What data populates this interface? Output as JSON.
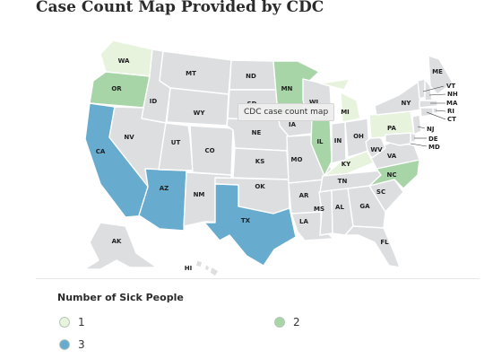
{
  "title": "Case Count Map Provided by CDC",
  "tooltip": "CDC case count map",
  "legend": {
    "title": "Number of Sick People",
    "items": [
      {
        "label": "1",
        "color": "#e8f3de"
      },
      {
        "label": "2",
        "color": "#a8d5a8"
      },
      {
        "label": "3",
        "color": "#67abcf"
      }
    ]
  },
  "colors": {
    "none": "#dcdee0",
    "one": "#e8f3de",
    "two": "#a8d5a8",
    "three": "#67abcf"
  },
  "states": [
    {
      "abbr": "WA",
      "value": 1
    },
    {
      "abbr": "OR",
      "value": 2
    },
    {
      "abbr": "CA",
      "value": 3
    },
    {
      "abbr": "ID",
      "value": 0
    },
    {
      "abbr": "NV",
      "value": 0
    },
    {
      "abbr": "AZ",
      "value": 3
    },
    {
      "abbr": "UT",
      "value": 0
    },
    {
      "abbr": "MT",
      "value": 0
    },
    {
      "abbr": "WY",
      "value": 0
    },
    {
      "abbr": "CO",
      "value": 0
    },
    {
      "abbr": "NM",
      "value": 0
    },
    {
      "abbr": "ND",
      "value": 0
    },
    {
      "abbr": "SD",
      "value": 0
    },
    {
      "abbr": "NE",
      "value": 0
    },
    {
      "abbr": "KS",
      "value": 0
    },
    {
      "abbr": "OK",
      "value": 0
    },
    {
      "abbr": "TX",
      "value": 3
    },
    {
      "abbr": "MN",
      "value": 2
    },
    {
      "abbr": "IA",
      "value": 0
    },
    {
      "abbr": "MO",
      "value": 0
    },
    {
      "abbr": "AR",
      "value": 0
    },
    {
      "abbr": "LA",
      "value": 0
    },
    {
      "abbr": "WI",
      "value": 0
    },
    {
      "abbr": "IL",
      "value": 2
    },
    {
      "abbr": "MI",
      "value": 1
    },
    {
      "abbr": "IN",
      "value": 0
    },
    {
      "abbr": "OH",
      "value": 0
    },
    {
      "abbr": "KY",
      "value": 1
    },
    {
      "abbr": "TN",
      "value": 0
    },
    {
      "abbr": "MS",
      "value": 0
    },
    {
      "abbr": "AL",
      "value": 0
    },
    {
      "abbr": "GA",
      "value": 0
    },
    {
      "abbr": "FL",
      "value": 0
    },
    {
      "abbr": "SC",
      "value": 0
    },
    {
      "abbr": "NC",
      "value": 2
    },
    {
      "abbr": "VA",
      "value": 0
    },
    {
      "abbr": "WV",
      "value": 0
    },
    {
      "abbr": "PA",
      "value": 1
    },
    {
      "abbr": "NY",
      "value": 0
    },
    {
      "abbr": "ME",
      "value": 0
    },
    {
      "abbr": "VT",
      "value": 0
    },
    {
      "abbr": "NH",
      "value": 0
    },
    {
      "abbr": "MA",
      "value": 0
    },
    {
      "abbr": "RI",
      "value": 0
    },
    {
      "abbr": "CT",
      "value": 0
    },
    {
      "abbr": "NJ",
      "value": 0
    },
    {
      "abbr": "DE",
      "value": 0
    },
    {
      "abbr": "MD",
      "value": 0
    },
    {
      "abbr": "AK",
      "value": 0
    },
    {
      "abbr": "HI",
      "value": 0
    }
  ]
}
